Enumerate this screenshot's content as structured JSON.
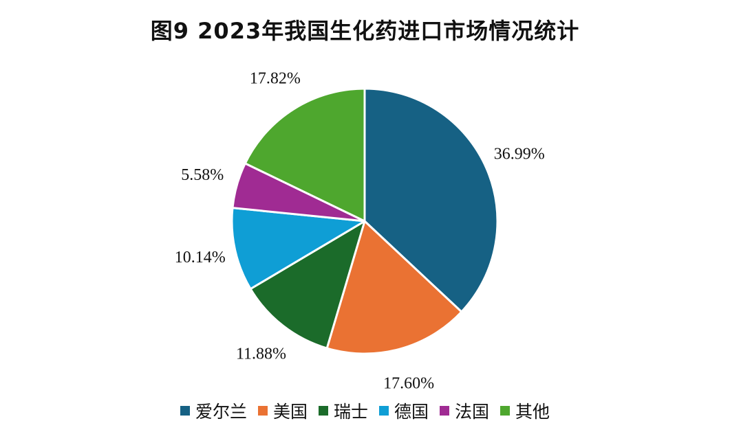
{
  "chart_data": {
    "type": "pie",
    "title": "图9 2023年我国生化药进口市场情况统计",
    "unit": "%",
    "legend_position": "bottom",
    "slices": [
      {
        "name": "爱尔兰",
        "value": 36.99,
        "label": "36.99%",
        "color": "#166184"
      },
      {
        "name": "美国",
        "value": 17.6,
        "label": "17.60%",
        "color": "#EA7233"
      },
      {
        "name": "瑞士",
        "value": 11.88,
        "label": "11.88%",
        "color": "#1B6B2A"
      },
      {
        "name": "德国",
        "value": 10.14,
        "label": "10.14%",
        "color": "#0F9ED5"
      },
      {
        "name": "法国",
        "value": 5.58,
        "label": "5.58%",
        "color": "#A02B93"
      },
      {
        "name": "其他",
        "value": 17.82,
        "label": "17.82%",
        "color": "#4EA72E"
      }
    ]
  }
}
